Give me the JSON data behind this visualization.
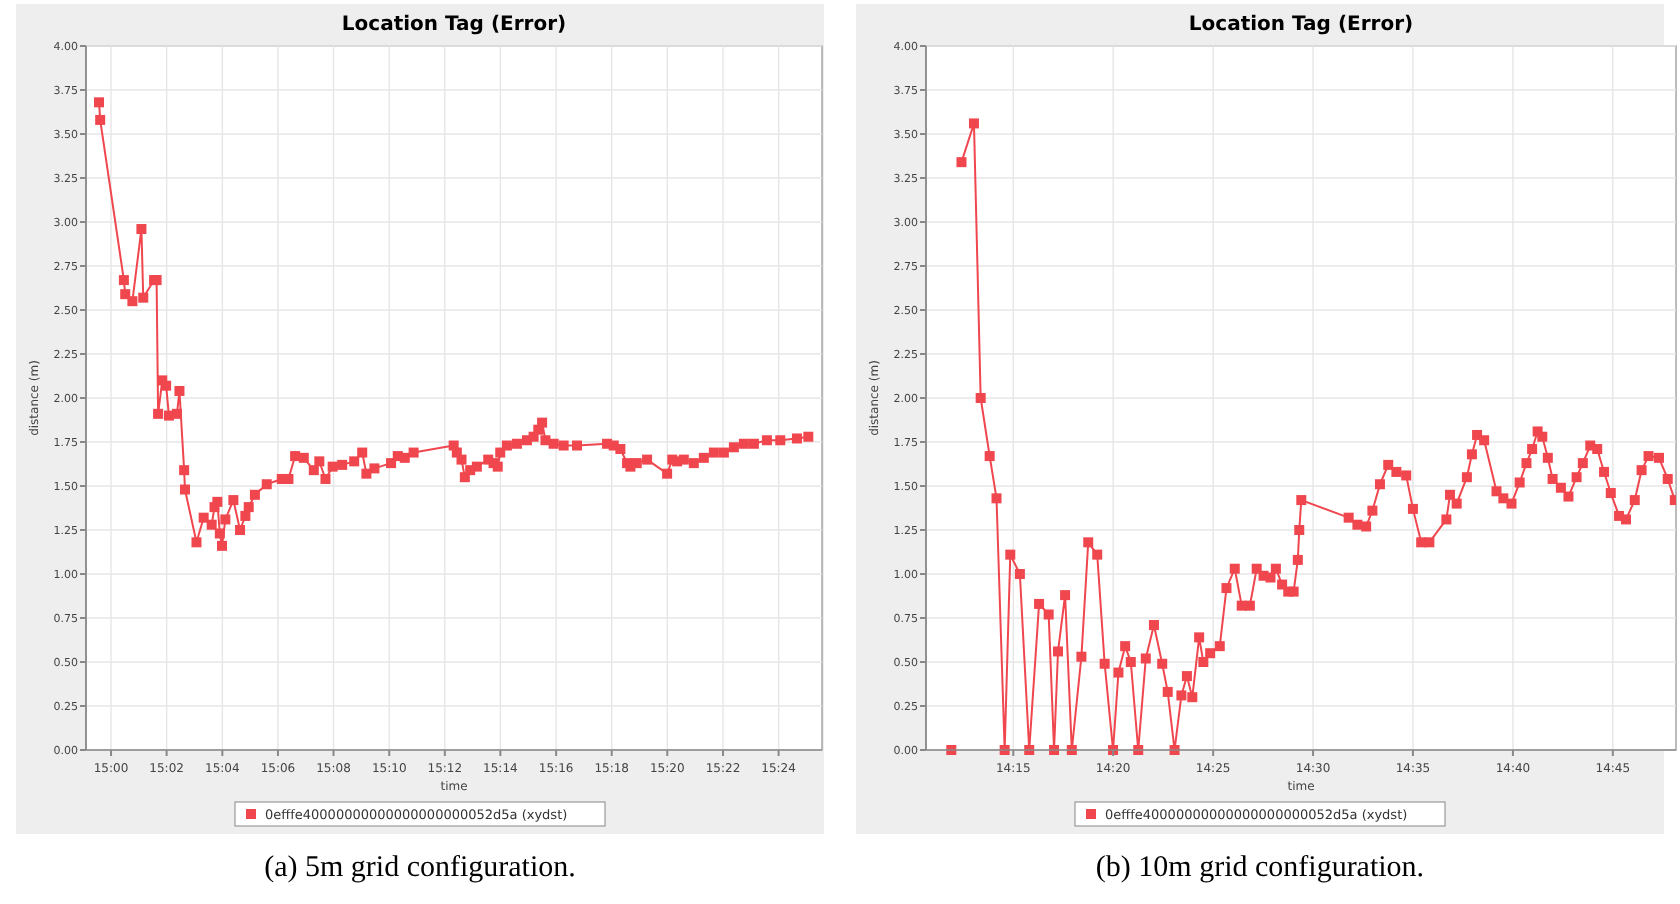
{
  "chart_data": [
    {
      "type": "line",
      "title": "Location Tag (Error)",
      "xlabel": "time",
      "ylabel": "distance (m)",
      "annotations": [
        "(a) 5m grid configuration."
      ],
      "xlim": [
        14.985,
        15.426
      ],
      "ylim": [
        0,
        4
      ],
      "xticks": [
        {
          "value": 15.0,
          "label": "15:00"
        },
        {
          "value": 15.0333,
          "label": "15:02"
        },
        {
          "value": 15.0667,
          "label": "15:04"
        },
        {
          "value": 15.1,
          "label": "15:06"
        },
        {
          "value": 15.1333,
          "label": "15:08"
        },
        {
          "value": 15.1667,
          "label": "15:10"
        },
        {
          "value": 15.2,
          "label": "15:12"
        },
        {
          "value": 15.2333,
          "label": "15:14"
        },
        {
          "value": 15.2667,
          "label": "15:16"
        },
        {
          "value": 15.3,
          "label": "15:18"
        },
        {
          "value": 15.3333,
          "label": "15:20"
        },
        {
          "value": 15.3667,
          "label": "15:22"
        },
        {
          "value": 15.4,
          "label": "15:24"
        }
      ],
      "yticks": [
        {
          "value": 0,
          "label": "0.00"
        },
        {
          "value": 0.25,
          "label": "0.25"
        },
        {
          "value": 0.5,
          "label": "0.50"
        },
        {
          "value": 0.75,
          "label": "0.75"
        },
        {
          "value": 1,
          "label": "1.00"
        },
        {
          "value": 1.25,
          "label": "1.25"
        },
        {
          "value": 1.5,
          "label": "1.50"
        },
        {
          "value": 1.75,
          "label": "1.75"
        },
        {
          "value": 2,
          "label": "2.00"
        },
        {
          "value": 2.25,
          "label": "2.25"
        },
        {
          "value": 2.5,
          "label": "2.50"
        },
        {
          "value": 2.75,
          "label": "2.75"
        },
        {
          "value": 3,
          "label": "3.00"
        },
        {
          "value": 3.25,
          "label": "3.25"
        },
        {
          "value": 3.5,
          "label": "3.50"
        },
        {
          "value": 3.75,
          "label": "3.75"
        },
        {
          "value": 4,
          "label": "4.00"
        }
      ],
      "grid": true,
      "legend": "bottom",
      "marker": "square",
      "line_style": "solid",
      "series": [
        {
          "name": "0efffe40000000000000000000052d5a (xydst)",
          "color": "#f0464e",
          "x": [
            14.9928,
            14.9935,
            15.0077,
            15.0085,
            15.0128,
            15.0182,
            15.0193,
            15.0258,
            15.0273,
            15.0282,
            15.0307,
            15.033,
            15.0347,
            15.0395,
            15.041,
            15.0438,
            15.0443,
            15.0512,
            15.0555,
            15.0603,
            15.062,
            15.0637,
            15.0652,
            15.0665,
            15.0685,
            15.0733,
            15.0773,
            15.0805,
            15.0825,
            15.0862,
            15.0933,
            15.1023,
            15.1063,
            15.1103,
            15.1155,
            15.1215,
            15.1248,
            15.1285,
            15.1328,
            15.1385,
            15.1457,
            15.1505,
            15.153,
            15.1578,
            15.1678,
            15.1718,
            15.176,
            15.1813,
            15.2053,
            15.2072,
            15.21,
            15.212,
            15.2152,
            15.2192,
            15.226,
            15.2292,
            15.2317,
            15.2332,
            15.2372,
            15.2432,
            15.2492,
            15.2532,
            15.256,
            15.2583,
            15.2603,
            15.2652,
            15.2712,
            15.2792,
            15.2972,
            15.3012,
            15.3052,
            15.3092,
            15.3112,
            15.315,
            15.3212,
            15.3332,
            15.3363,
            15.3392,
            15.3432,
            15.3492,
            15.3552,
            15.3612,
            15.3672,
            15.3732,
            15.3792,
            15.3852,
            15.393,
            15.401,
            15.411,
            15.4178
          ],
          "values": [
            3.68,
            3.58,
            2.67,
            2.59,
            2.55,
            2.96,
            2.57,
            2.67,
            2.67,
            1.91,
            2.1,
            2.07,
            1.9,
            1.91,
            2.04,
            1.59,
            1.48,
            1.18,
            1.32,
            1.28,
            1.38,
            1.41,
            1.23,
            1.16,
            1.31,
            1.42,
            1.25,
            1.33,
            1.38,
            1.45,
            1.51,
            1.54,
            1.54,
            1.67,
            1.66,
            1.59,
            1.64,
            1.54,
            1.61,
            1.62,
            1.64,
            1.69,
            1.57,
            1.6,
            1.63,
            1.67,
            1.66,
            1.69,
            1.73,
            1.69,
            1.65,
            1.55,
            1.59,
            1.61,
            1.65,
            1.63,
            1.61,
            1.69,
            1.73,
            1.74,
            1.76,
            1.78,
            1.82,
            1.86,
            1.76,
            1.74,
            1.73,
            1.73,
            1.74,
            1.73,
            1.71,
            1.63,
            1.61,
            1.63,
            1.65,
            1.57,
            1.65,
            1.64,
            1.65,
            1.63,
            1.66,
            1.69,
            1.69,
            1.72,
            1.74,
            1.74,
            1.76,
            1.76,
            1.77,
            1.78
          ]
        }
      ]
    },
    {
      "type": "line",
      "title": "Location Tag (Error)",
      "xlabel": "time",
      "ylabel": "distance (m)",
      "annotations": [
        "(b) 10m grid configuration."
      ],
      "xlim": [
        14.1772,
        14.8027
      ],
      "ylim": [
        0,
        4
      ],
      "xticks": [
        {
          "value": 14.25,
          "label": "14:15"
        },
        {
          "value": 14.3333,
          "label": "14:20"
        },
        {
          "value": 14.4167,
          "label": "14:25"
        },
        {
          "value": 14.5,
          "label": "14:30"
        },
        {
          "value": 14.5833,
          "label": "14:35"
        },
        {
          "value": 14.6667,
          "label": "14:40"
        },
        {
          "value": 14.75,
          "label": "14:45"
        }
      ],
      "yticks": [
        {
          "value": 0,
          "label": "0.00"
        },
        {
          "value": 0.25,
          "label": "0.25"
        },
        {
          "value": 0.5,
          "label": "0.50"
        },
        {
          "value": 0.75,
          "label": "0.75"
        },
        {
          "value": 1,
          "label": "1.00"
        },
        {
          "value": 1.25,
          "label": "1.25"
        },
        {
          "value": 1.5,
          "label": "1.50"
        },
        {
          "value": 1.75,
          "label": "1.75"
        },
        {
          "value": 2,
          "label": "2.00"
        },
        {
          "value": 2.25,
          "label": "2.25"
        },
        {
          "value": 2.5,
          "label": "2.50"
        },
        {
          "value": 2.75,
          "label": "2.75"
        },
        {
          "value": 3,
          "label": "3.00"
        },
        {
          "value": 3.25,
          "label": "3.25"
        },
        {
          "value": 3.5,
          "label": "3.50"
        },
        {
          "value": 3.75,
          "label": "3.75"
        },
        {
          "value": 4,
          "label": "4.00"
        }
      ],
      "grid": true,
      "legend": "bottom",
      "marker": "square",
      "line_style": "solid",
      "series": [
        {
          "name": "0efffe40000000000000000000052d5a (xydst)",
          "color": "#f0464e",
          "x": [
            14.1983,
            14.2017,
            14.2068,
            14.2172,
            14.2228,
            14.2303,
            14.236,
            14.2428,
            14.2475,
            14.2555,
            14.2633,
            14.2715,
            14.2795,
            14.284,
            14.2873,
            14.2932,
            14.2988,
            14.3068,
            14.3125,
            14.32,
            14.3262,
            14.3332,
            14.3377,
            14.3433,
            14.348,
            14.3542,
            14.3605,
            14.3673,
            14.3742,
            14.3788,
            14.3845,
            14.3902,
            14.3948,
            14.3993,
            14.405,
            14.4085,
            14.4142,
            14.4222,
            14.4278,
            14.4347,
            14.4405,
            14.4473,
            14.453,
            14.4587,
            14.4645,
            14.469,
            14.4742,
            14.4793,
            14.4838,
            14.4873,
            14.4885,
            14.4902,
            14.5297,
            14.537,
            14.5443,
            14.5495,
            14.5558,
            14.5627,
            14.5695,
            14.5777,
            14.5833,
            14.5902,
            14.597,
            14.6112,
            14.6142,
            14.6198,
            14.6283,
            14.6325,
            14.6368,
            14.6427,
            14.653,
            14.6587,
            14.6655,
            14.6723,
            14.678,
            14.6827,
            14.6873,
            14.6912,
            14.6958,
            14.6998,
            14.7067,
            14.713,
            14.7198,
            14.725,
            14.7312,
            14.737,
            14.7427,
            14.7483,
            14.7552,
            14.761,
            14.7683,
            14.774,
            14.7798,
            14.7885,
            14.7958,
            14.8017
          ],
          "values": [
            0,
            null,
            3.34,
            3.56,
            2.0,
            1.67,
            1.43,
            0,
            1.11,
            1.0,
            0,
            0.83,
            0.77,
            0,
            0.56,
            0.88,
            0,
            0.53,
            1.18,
            1.11,
            0.49,
            0,
            0.44,
            0.59,
            0.5,
            0,
            0.52,
            0.71,
            0.49,
            0.33,
            0,
            0.31,
            0.42,
            0.3,
            0.64,
            0.5,
            0.55,
            0.59,
            0.92,
            1.03,
            0.82,
            0.82,
            1.03,
            0.99,
            0.98,
            1.03,
            0.94,
            0.9,
            0.9,
            1.08,
            1.25,
            1.42,
            1.32,
            1.28,
            1.27,
            1.36,
            1.51,
            1.62,
            1.58,
            1.56,
            1.37,
            1.18,
            1.18,
            1.31,
            1.45,
            1.4,
            1.55,
            1.68,
            1.79,
            1.76,
            1.47,
            1.43,
            1.4,
            1.52,
            1.63,
            1.71,
            1.81,
            1.78,
            1.66,
            1.54,
            1.49,
            1.44,
            1.55,
            1.63,
            1.73,
            1.71,
            1.58,
            1.46,
            1.33,
            1.31,
            1.42,
            1.59,
            1.67,
            1.66,
            1.54,
            1.42
          ]
        }
      ]
    }
  ]
}
